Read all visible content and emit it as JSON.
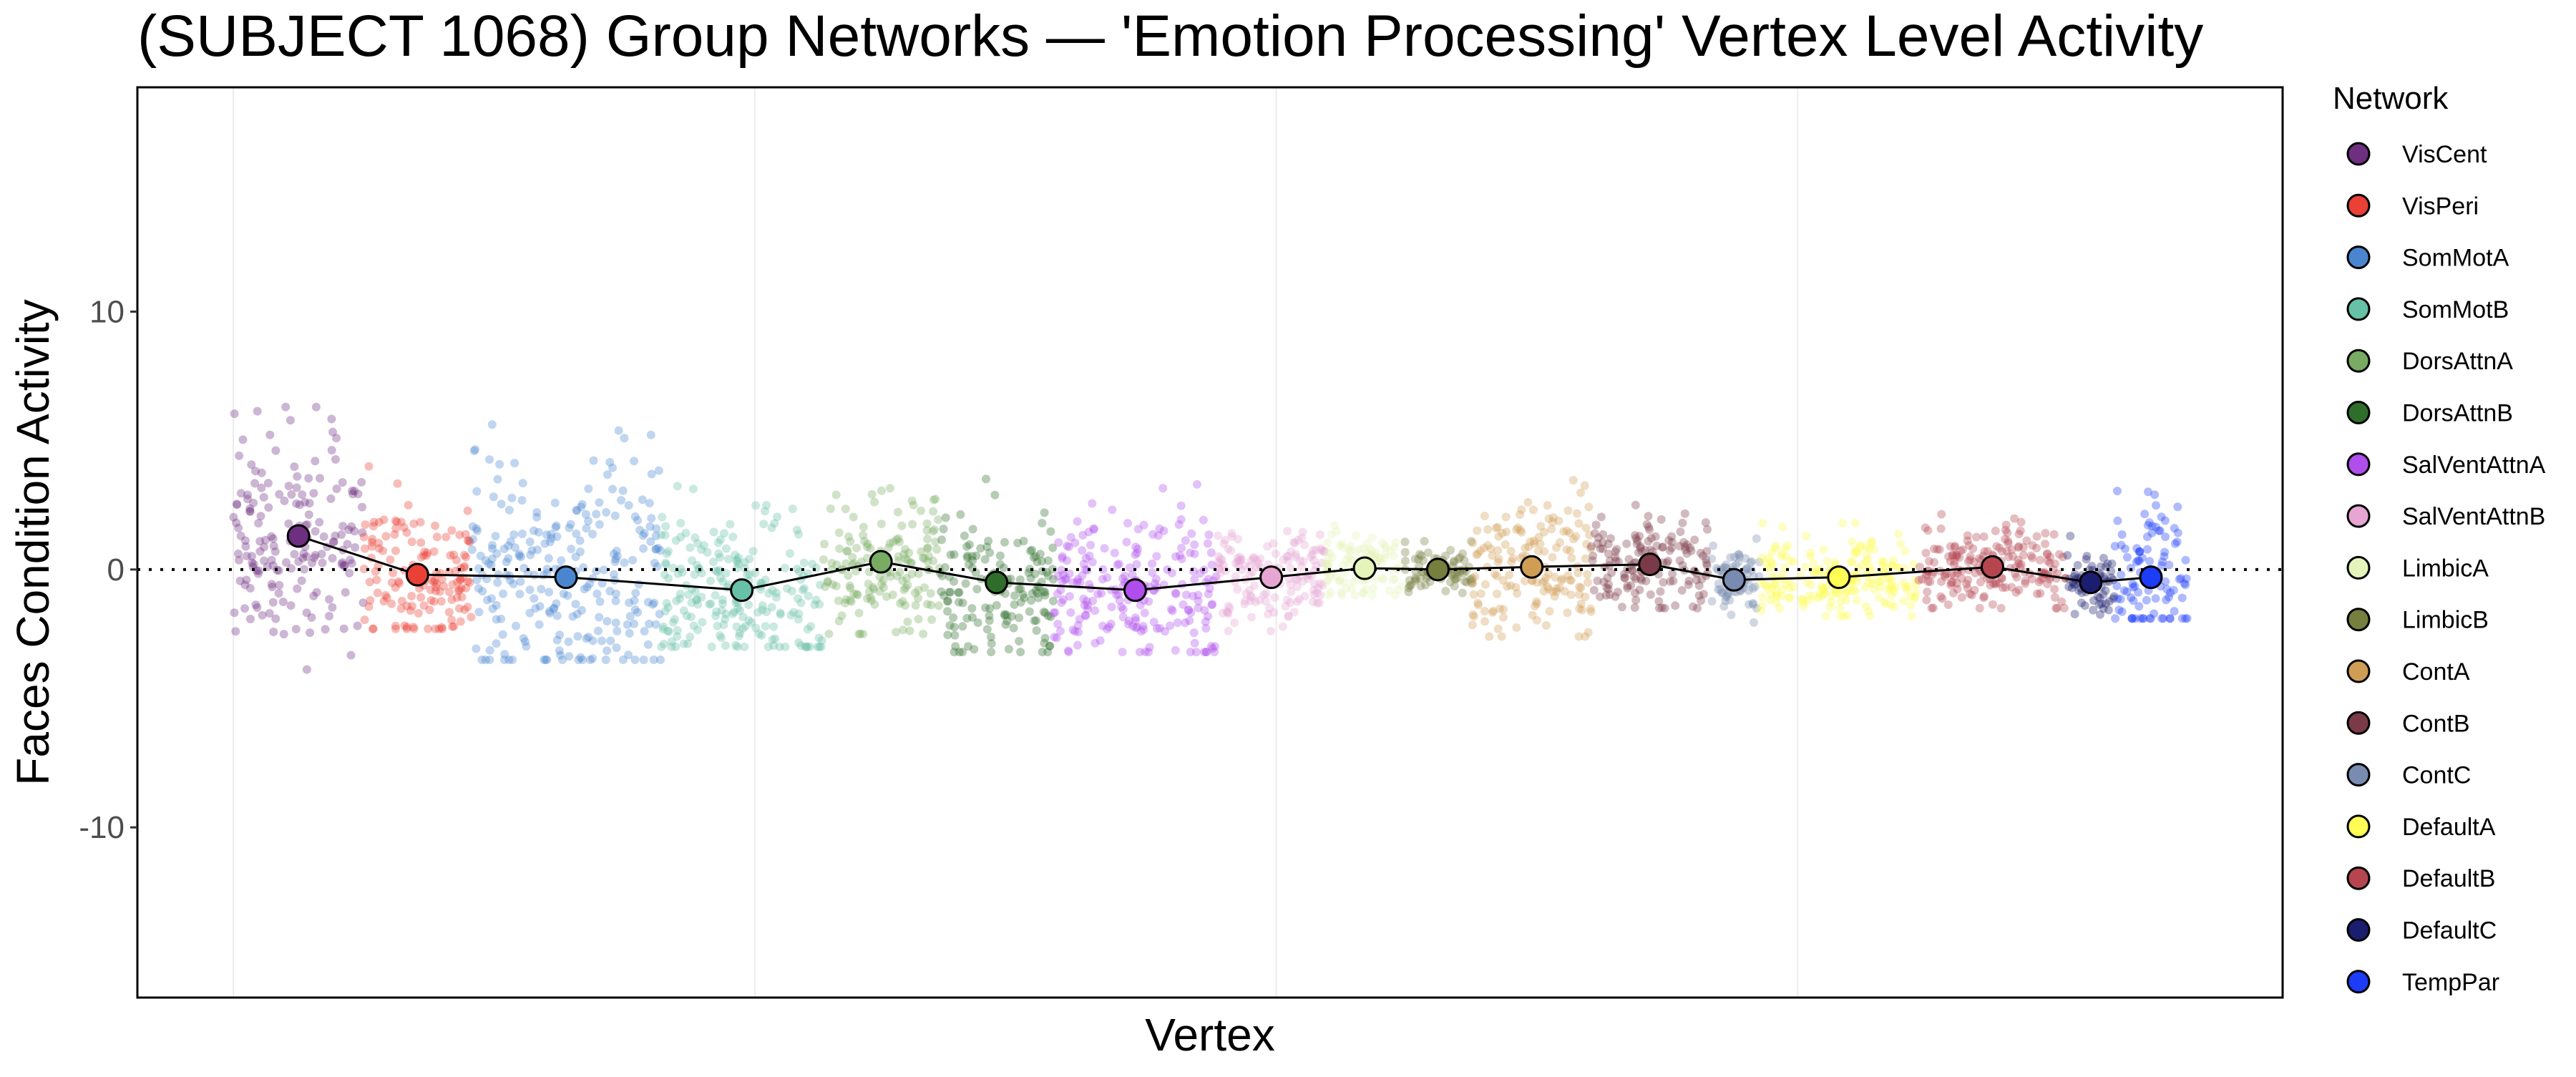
{
  "chart_data": {
    "type": "scatter",
    "title": "(SUBJECT 1068) Group Networks — 'Emotion Processing' Vertex Level Activity",
    "xlabel": "Vertex",
    "ylabel": "Faces Condition Activity",
    "ylim": [
      -16.6,
      18.7
    ],
    "yticks": [
      -10,
      0,
      10
    ],
    "ytick_labels": [
      "-10",
      "0",
      "10"
    ],
    "xlim": [
      -18.4,
      393
    ],
    "x_gridlines": [
      0,
      100,
      200,
      300
    ],
    "reference_line_y": 0,
    "grid": "vertical-major",
    "legend": {
      "title": "Network",
      "placement": "right"
    },
    "series": [
      {
        "name": "VisCent",
        "color": "#6e2f80",
        "x_start": 0,
        "x_end": 25,
        "mean": 1.3,
        "range": [
          -4.3,
          6.3
        ]
      },
      {
        "name": "VisPeri",
        "color": "#ea4035",
        "x_start": 25,
        "x_end": 45.6,
        "mean": -0.2,
        "range": [
          -2.3,
          4.0
        ]
      },
      {
        "name": "SomMotA",
        "color": "#4a86d0",
        "x_start": 45.6,
        "x_end": 82,
        "mean": -0.3,
        "range": [
          -3.5,
          5.8
        ]
      },
      {
        "name": "SomMotB",
        "color": "#66c1a7",
        "x_start": 82,
        "x_end": 113,
        "mean": -0.8,
        "range": [
          -3.0,
          3.3
        ]
      },
      {
        "name": "DorsAttnA",
        "color": "#78ac62",
        "x_start": 113,
        "x_end": 135.4,
        "mean": 0.3,
        "range": [
          -2.5,
          3.7
        ]
      },
      {
        "name": "DorsAttnB",
        "color": "#2f6e2a",
        "x_start": 135.4,
        "x_end": 157.3,
        "mean": -0.5,
        "range": [
          -3.2,
          3.7
        ]
      },
      {
        "name": "SalVentAttnA",
        "color": "#b04ded",
        "x_start": 157.3,
        "x_end": 188.6,
        "mean": -0.8,
        "range": [
          -3.2,
          3.3
        ]
      },
      {
        "name": "SalVentAttnB",
        "color": "#e6a5d3",
        "x_start": 188.6,
        "x_end": 209.5,
        "mean": -0.3,
        "range": [
          -2.4,
          2.0
        ]
      },
      {
        "name": "LimbicA",
        "color": "#e5f4bb",
        "x_start": 209.5,
        "x_end": 224.4,
        "mean": 0.05,
        "range": [
          -1.0,
          2.0
        ]
      },
      {
        "name": "LimbicB",
        "color": "#767f3e",
        "x_start": 224.4,
        "x_end": 237.6,
        "mean": 0.0,
        "range": [
          -1.3,
          1.1
        ]
      },
      {
        "name": "ContA",
        "color": "#d09d55",
        "x_start": 237.6,
        "x_end": 260.4,
        "mean": 0.1,
        "range": [
          -2.6,
          3.8
        ]
      },
      {
        "name": "ContB",
        "color": "#7a3a48",
        "x_start": 260.4,
        "x_end": 282.9,
        "mean": 0.2,
        "range": [
          -1.5,
          2.5
        ]
      },
      {
        "name": "ContC",
        "color": "#798bb0",
        "x_start": 282.9,
        "x_end": 292.7,
        "mean": -0.4,
        "range": [
          -2.3,
          1.2
        ]
      },
      {
        "name": "DefaultA",
        "color": "#fdfd55",
        "x_start": 292.7,
        "x_end": 323.1,
        "mean": -0.3,
        "range": [
          -1.8,
          1.8
        ]
      },
      {
        "name": "DefaultB",
        "color": "#b5464f",
        "x_start": 323.1,
        "x_end": 351.6,
        "mean": 0.1,
        "range": [
          -1.5,
          2.2
        ]
      },
      {
        "name": "DefaultC",
        "color": "#1b1e6e",
        "x_start": 351.6,
        "x_end": 360.8,
        "mean": -0.5,
        "range": [
          -2.0,
          1.3
        ]
      },
      {
        "name": "TempPar",
        "color": "#1c3cf8",
        "x_start": 360.8,
        "x_end": 374.7,
        "mean": -0.3,
        "range": [
          -1.9,
          3.8
        ]
      }
    ]
  }
}
